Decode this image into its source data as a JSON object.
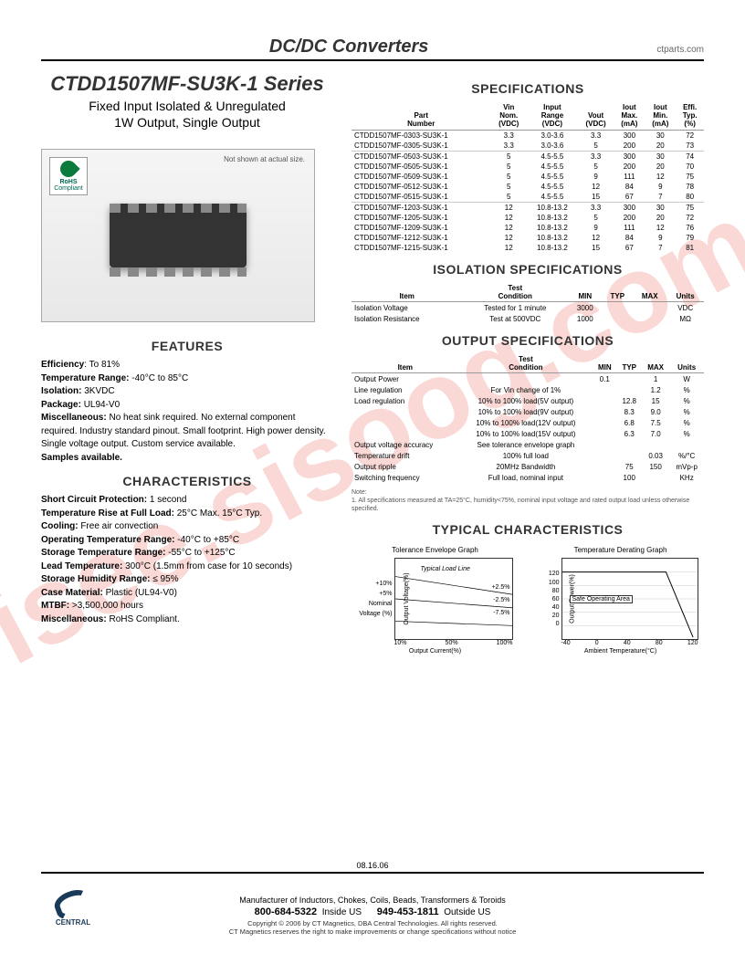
{
  "header": {
    "title": "DC/DC Converters",
    "url": "ctparts.com"
  },
  "series": {
    "title": "CTDD1507MF-SU3K-1 Series",
    "subtitle1": "Fixed Input Isolated & Unregulated",
    "subtitle2": "1W Output, Single Output"
  },
  "product_image": {
    "not_actual": "Not shown at actual size.",
    "rohs1": "RoHS",
    "rohs2": "Compliant"
  },
  "features": {
    "heading": "FEATURES",
    "items": [
      {
        "label": "Efficiency",
        "value": ": To 81%"
      },
      {
        "label": "Temperature Range:",
        "value": "  -40°C to 85°C"
      },
      {
        "label": "Isolation:",
        "value": "  3KVDC"
      },
      {
        "label": "Package:",
        "value": "  UL94-V0"
      },
      {
        "label": "Miscellaneous:",
        "value": "  No heat sink required. No external component required. Industry standard pinout. Small footprint. High power density. Single voltage output.  Custom service available."
      },
      {
        "label": "Samples available.",
        "value": ""
      }
    ]
  },
  "characteristics": {
    "heading": "CHARACTERISTICS",
    "items": [
      {
        "label": "Short Circuit Protection:",
        "value": "  1 second"
      },
      {
        "label": "Temperature Rise at Full Load:",
        "value": "  25°C Max. 15°C Typ."
      },
      {
        "label": "Cooling:",
        "value": "  Free air convection"
      },
      {
        "label": "Operating Temperature Range:",
        "value": "  -40°C to +85°C"
      },
      {
        "label": "Storage Temperature Range:",
        "value": "  -55°C to +125°C"
      },
      {
        "label": "Lead Temperature:",
        "value": "  300°C (1.5mm from case for 10 seconds)"
      },
      {
        "label": "Storage Humidity Range:",
        "value": "  ≤ 95%"
      },
      {
        "label": "Case Material:",
        "value": "  Plastic (UL94-V0)"
      },
      {
        "label": "MTBF:",
        "value": "  >3,500,000 hours"
      },
      {
        "label": "Miscellaneous:",
        "value": "  RoHS Compliant."
      }
    ]
  },
  "specs": {
    "heading": "SPECIFICATIONS",
    "columns": [
      "Part Number",
      "Vin Nom. (VDC)",
      "Input Range (VDC)",
      "Vout (VDC)",
      "Iout Max. (mA)",
      "Iout Min. (mA)",
      "Effi. Typ. (%)"
    ],
    "rows": [
      [
        "CTDD1507MF-0303-SU3K-1",
        "3.3",
        "3.0-3.6",
        "3.3",
        "300",
        "30",
        "72"
      ],
      [
        "CTDD1507MF-0305-SU3K-1",
        "3.3",
        "3.0-3.6",
        "5",
        "200",
        "20",
        "73"
      ],
      [
        "CTDD1507MF-0503-SU3K-1",
        "5",
        "4.5-5.5",
        "3.3",
        "300",
        "30",
        "74"
      ],
      [
        "CTDD1507MF-0505-SU3K-1",
        "5",
        "4.5-5.5",
        "5",
        "200",
        "20",
        "70"
      ],
      [
        "CTDD1507MF-0509-SU3K-1",
        "5",
        "4.5-5.5",
        "9",
        "111",
        "12",
        "75"
      ],
      [
        "CTDD1507MF-0512-SU3K-1",
        "5",
        "4.5-5.5",
        "12",
        "84",
        "9",
        "78"
      ],
      [
        "CTDD1507MF-0515-SU3K-1",
        "5",
        "4.5-5.5",
        "15",
        "67",
        "7",
        "80"
      ],
      [
        "CTDD1507MF-1203-SU3K-1",
        "12",
        "10.8-13.2",
        "3.3",
        "300",
        "30",
        "75"
      ],
      [
        "CTDD1507MF-1205-SU3K-1",
        "12",
        "10.8-13.2",
        "5",
        "200",
        "20",
        "72"
      ],
      [
        "CTDD1507MF-1209-SU3K-1",
        "12",
        "10.8-13.2",
        "9",
        "111",
        "12",
        "76"
      ],
      [
        "CTDD1507MF-1212-SU3K-1",
        "12",
        "10.8-13.2",
        "12",
        "84",
        "9",
        "79"
      ],
      [
        "CTDD1507MF-1215-SU3K-1",
        "12",
        "10.8-13.2",
        "15",
        "67",
        "7",
        "81"
      ]
    ],
    "group_breaks": [
      2,
      7
    ]
  },
  "isolation": {
    "heading": "ISOLATION SPECIFICATIONS",
    "columns": [
      "Item",
      "Test Condition",
      "MIN",
      "TYP",
      "MAX",
      "Units"
    ],
    "rows": [
      [
        "Isolation Voltage",
        "Tested for 1 minute",
        "3000",
        "",
        "",
        "VDC"
      ],
      [
        "Isolation Resistance",
        "Test at 500VDC",
        "1000",
        "",
        "",
        "MΩ"
      ]
    ]
  },
  "output": {
    "heading": "OUTPUT SPECIFICATIONS",
    "columns": [
      "Item",
      "Test Condition",
      "MIN",
      "TYP",
      "MAX",
      "Units"
    ],
    "rows": [
      [
        "Output Power",
        "",
        "0.1",
        "",
        "1",
        "W"
      ],
      [
        "Line regulation",
        "For Vin change of 1%",
        "",
        "",
        "1.2",
        "%"
      ],
      [
        "Load regulation",
        "10% to 100% load(5V output)",
        "",
        "12.8",
        "15",
        "%"
      ],
      [
        "",
        "10% to 100% load(9V output)",
        "",
        "8.3",
        "9.0",
        "%"
      ],
      [
        "",
        "10% to 100% load(12V output)",
        "",
        "6.8",
        "7.5",
        "%"
      ],
      [
        "",
        "10% to 100% load(15V output)",
        "",
        "6.3",
        "7.0",
        "%"
      ],
      [
        "Output voltage accuracy",
        "See tolerance envelope graph",
        "",
        "",
        "",
        ""
      ],
      [
        "Temperature drift",
        "100% full load",
        "",
        "",
        "0.03",
        "%/°C"
      ],
      [
        "Output ripple",
        "20MHz Bandwidth",
        "",
        "75",
        "150",
        "mVp-p"
      ],
      [
        "Switching frequency",
        "Full load, nominal input",
        "",
        "100",
        "",
        "KHz"
      ]
    ]
  },
  "note": {
    "label": "Note:",
    "text": "1. All specifications measured at TA=25°C, humidity<75%, nominal input voltage and rated output load unless otherwise specified."
  },
  "typical": {
    "heading": "TYPICAL CHARACTERISTICS",
    "chart1": {
      "title": "Tolerance Envelope Graph",
      "ylabel": "Output Voltage(%)",
      "xlabel": "Output Current(%)",
      "yticks": [
        "+10%",
        "+5%",
        "Nominal Voltage (%)"
      ],
      "inner": [
        "Typical Load Line",
        "+2.5%",
        "-2.5%",
        "-7.5%"
      ],
      "xticks": [
        "10%",
        "50%",
        "100%"
      ]
    },
    "chart2": {
      "title": "Temperature Derating Graph",
      "ylabel": "Output Power(%)",
      "xlabel": "Ambient Temperature(°C)",
      "yticks": [
        "120",
        "100",
        "80",
        "60",
        "40",
        "20",
        "0"
      ],
      "inner": [
        "Safe Operating Area"
      ],
      "xticks": [
        "-40",
        "0",
        "40",
        "80",
        "120"
      ]
    }
  },
  "footer": {
    "date": "08.16.06",
    "tagline": "Manufacturer of Inductors, Chokes, Coils, Beads, Transformers & Toroids",
    "phone1": "800-684-5322",
    "phone1_label": "Inside US",
    "phone2": "949-453-1811",
    "phone2_label": "Outside US",
    "copyright": "Copyright © 2006 by CT Magnetics, DBA Central Technologies. All rights reserved.",
    "disclaimer": "CT Magnetics reserves the right to make improvements or change specifications without notice",
    "logo": "CENTRAL"
  },
  "watermark": "isee.sisoog.com",
  "colors": {
    "text": "#000000",
    "accent": "#333333",
    "border": "#999999",
    "watermark": "rgba(220,40,20,0.18)",
    "rohs_green": "#0a7a3d"
  }
}
